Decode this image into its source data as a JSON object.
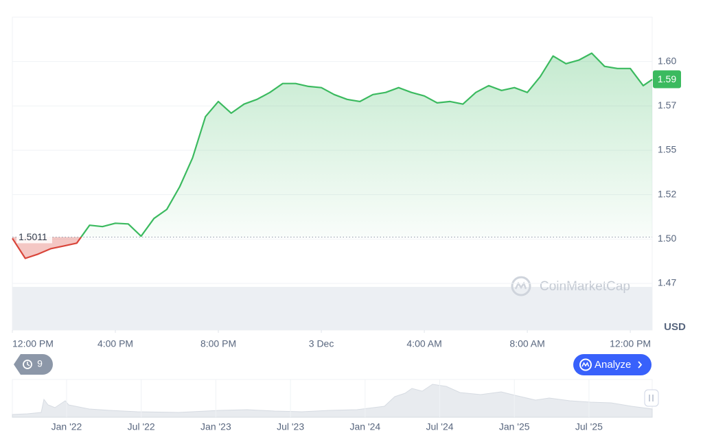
{
  "chart_data": {
    "type": "line",
    "x": [
      0,
      0.5,
      1,
      1.5,
      2,
      2.5,
      3,
      3.5,
      4,
      4.5,
      5,
      5.5,
      6,
      6.5,
      7,
      7.5,
      8,
      8.5,
      9,
      9.5,
      10,
      10.5,
      11,
      11.5,
      12,
      12.5,
      13,
      13.5,
      14,
      14.5,
      15,
      15.5,
      16,
      16.5,
      17,
      17.5,
      18,
      18.5,
      19,
      19.5,
      20,
      20.5,
      21,
      21.5,
      22,
      22.5,
      23,
      23.5,
      24,
      24.5,
      24.85
    ],
    "values": [
      1.5004,
      1.4891,
      1.4915,
      1.4946,
      1.4961,
      1.4977,
      1.5078,
      1.507,
      1.5089,
      1.5085,
      1.5016,
      1.5116,
      1.5167,
      1.5295,
      1.5457,
      1.569,
      1.5775,
      1.5709,
      1.576,
      1.5787,
      1.5826,
      1.5876,
      1.5876,
      1.586,
      1.5853,
      1.5814,
      1.5787,
      1.5775,
      1.5814,
      1.5826,
      1.5853,
      1.5826,
      1.5806,
      1.5767,
      1.5775,
      1.576,
      1.5826,
      1.5864,
      1.5837,
      1.5853,
      1.5826,
      1.5915,
      1.6031,
      1.5988,
      1.6008,
      1.6047,
      1.5973,
      1.5961,
      1.5961,
      1.5864,
      1.5899
    ],
    "up_color": "#3bba5f",
    "down_color": "#d9453a",
    "baseline": 1.5011,
    "current_price": 1.59,
    "currency": "USD",
    "xlim": [
      0,
      24.85
    ],
    "xticks": [
      {
        "value": 0,
        "label": "12:00 PM"
      },
      {
        "value": 4,
        "label": "4:00 PM"
      },
      {
        "value": 8,
        "label": "8:00 PM"
      },
      {
        "value": 12,
        "label": "3 Dec"
      },
      {
        "value": 16,
        "label": "4:00 AM"
      },
      {
        "value": 20,
        "label": "8:00 AM"
      },
      {
        "value": 24,
        "label": "12:00 PM"
      }
    ],
    "ylim": [
      1.475,
      1.625
    ],
    "yticks": [
      {
        "value": 1.475,
        "label": "1.47"
      },
      {
        "value": 1.5,
        "label": "1.50"
      },
      {
        "value": 1.525,
        "label": "1.52"
      },
      {
        "value": 1.55,
        "label": "1.55"
      },
      {
        "value": 1.575,
        "label": "1.57"
      },
      {
        "value": 1.6,
        "label": "1.60"
      }
    ],
    "grid": true,
    "watermark": "CoinMarketCap",
    "history_badge": "9",
    "analyze_button": "Analyze",
    "navigator_labels": [
      "Jan '22",
      "Jul '22",
      "Jan '23",
      "Jul '23",
      "Jan '24",
      "Jul '24",
      "Jan '25",
      "Jul '25"
    ]
  }
}
